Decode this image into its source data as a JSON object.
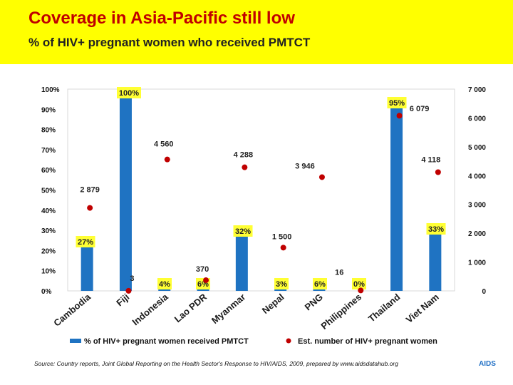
{
  "header": {
    "title": "Coverage in Asia-Pacific still low",
    "subtitle": "% of HIV+ pregnant women who received PMTCT"
  },
  "footer": {
    "source": "Source: Country reports, Joint Global Reporting on the Health Sector's Response to HIV/AIDS, 2009, prepared by www.aidsdatahub.org",
    "logo_text": "AIDS"
  },
  "colors": {
    "bar": "#1f73c2",
    "dot": "#c00000",
    "label_bg": "#ffff33",
    "header_bg": "#ffff00",
    "title": "#c00000"
  },
  "chart_data": {
    "type": "bar",
    "categories": [
      "Cambodia",
      "Fiji",
      "Indonesia",
      "Lao PDR",
      "Myanmar",
      "Nepal",
      "PNG",
      "Philippines",
      "Thailand",
      "Viet Nam"
    ],
    "series": [
      {
        "name": "% of HIV+ pregnant women who received PMTCT",
        "type": "bar",
        "axis": "left",
        "values": [
          27,
          100,
          4,
          6,
          32,
          3,
          6,
          0,
          95,
          33
        ],
        "labels": [
          "27%",
          "100%",
          "4%",
          "6%",
          "32%",
          "3%",
          "6%",
          "0%",
          "95%",
          "33%"
        ]
      },
      {
        "name": "Est. number of HIV+ pregnant women",
        "type": "scatter",
        "axis": "right",
        "values": [
          2879,
          3,
          4560,
          370,
          4288,
          1500,
          3946,
          16,
          6079,
          4118
        ],
        "labels": [
          "2 879",
          "3",
          "4 560",
          "370",
          "4 288",
          "1 500",
          "3 946",
          "16",
          "6 079",
          "4 118"
        ]
      }
    ],
    "y_left": {
      "ylim": [
        0,
        100
      ],
      "ticks": [
        "0%",
        "10%",
        "20%",
        "30%",
        "40%",
        "50%",
        "60%",
        "70%",
        "80%",
        "90%",
        "100%"
      ]
    },
    "y_right": {
      "ylim": [
        0,
        7000
      ],
      "ticks": [
        "0",
        "1 000",
        "2 000",
        "3 000",
        "4 000",
        "5 000",
        "6 000",
        "7 000"
      ]
    },
    "legend": [
      "% of HIV+ pregnant women received PMTCT",
      "Est. number of HIV+ pregnant women"
    ],
    "legend_position": "bottom",
    "grid": false
  }
}
